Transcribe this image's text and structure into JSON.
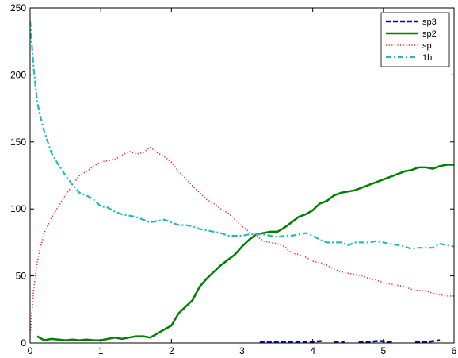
{
  "chart_data": {
    "type": "line",
    "title": "",
    "xlabel": "",
    "ylabel": "",
    "xlim": [
      0,
      6
    ],
    "ylim": [
      0,
      250
    ],
    "xticks": [
      "0",
      "1",
      "2",
      "3",
      "4",
      "5",
      "6"
    ],
    "yticks": [
      "0",
      "50",
      "100",
      "150",
      "200",
      "250"
    ],
    "grid": false,
    "legend_position": "top-right",
    "series": [
      {
        "name": "sp3",
        "color": "#0000cc",
        "dash": "dashed",
        "segments": [
          [
            [
              3.25,
              1
            ],
            [
              3.5,
              1
            ],
            [
              3.75,
              1
            ],
            [
              4.0,
              1
            ],
            [
              4.15,
              1.5
            ]
          ],
          [
            [
              4.3,
              1
            ],
            [
              4.45,
              1
            ]
          ],
          [
            [
              4.65,
              1
            ],
            [
              4.8,
              1
            ],
            [
              4.95,
              1.5
            ],
            [
              5.05,
              1
            ],
            [
              5.15,
              1
            ]
          ],
          [
            [
              5.45,
              1
            ],
            [
              5.65,
              1
            ],
            [
              5.8,
              2
            ]
          ]
        ]
      },
      {
        "name": "sp2",
        "color": "#008000",
        "dash": "solid",
        "segments": [
          [
            [
              0.1,
              5
            ],
            [
              0.2,
              2
            ],
            [
              0.3,
              3
            ],
            [
              0.4,
              2.5
            ],
            [
              0.5,
              2
            ],
            [
              0.6,
              2.5
            ],
            [
              0.7,
              2
            ],
            [
              0.8,
              2.5
            ],
            [
              0.9,
              2
            ],
            [
              1.0,
              2
            ],
            [
              1.1,
              3
            ],
            [
              1.2,
              4
            ],
            [
              1.3,
              3
            ],
            [
              1.4,
              4
            ],
            [
              1.5,
              5
            ],
            [
              1.6,
              5
            ],
            [
              1.7,
              4
            ],
            [
              1.8,
              7
            ],
            [
              1.9,
              10
            ],
            [
              2.0,
              13
            ],
            [
              2.1,
              22
            ],
            [
              2.2,
              27
            ],
            [
              2.3,
              32
            ],
            [
              2.4,
              42
            ],
            [
              2.5,
              48
            ],
            [
              2.6,
              53
            ],
            [
              2.7,
              58
            ],
            [
              2.8,
              62
            ],
            [
              2.9,
              66
            ],
            [
              3.0,
              72
            ],
            [
              3.1,
              77
            ],
            [
              3.2,
              81
            ],
            [
              3.3,
              82
            ],
            [
              3.4,
              83
            ],
            [
              3.5,
              83
            ],
            [
              3.6,
              86
            ],
            [
              3.7,
              90
            ],
            [
              3.8,
              94
            ],
            [
              3.9,
              96
            ],
            [
              4.0,
              99
            ],
            [
              4.1,
              104
            ],
            [
              4.2,
              106
            ],
            [
              4.3,
              110
            ],
            [
              4.4,
              112
            ],
            [
              4.5,
              113
            ],
            [
              4.6,
              114
            ],
            [
              4.7,
              116
            ],
            [
              4.8,
              118
            ],
            [
              4.9,
              120
            ],
            [
              5.0,
              122
            ],
            [
              5.1,
              124
            ],
            [
              5.2,
              126
            ],
            [
              5.3,
              128
            ],
            [
              5.4,
              129
            ],
            [
              5.5,
              131
            ],
            [
              5.6,
              131
            ],
            [
              5.7,
              130
            ],
            [
              5.8,
              132
            ],
            [
              5.9,
              133
            ],
            [
              6.0,
              133
            ]
          ]
        ]
      },
      {
        "name": "sp",
        "color": "#ee2222",
        "dash": "dotted",
        "segments": [
          [
            [
              0.0,
              5
            ],
            [
              0.05,
              40
            ],
            [
              0.1,
              60
            ],
            [
              0.15,
              72
            ],
            [
              0.2,
              82
            ],
            [
              0.3,
              93
            ],
            [
              0.4,
              102
            ],
            [
              0.5,
              110
            ],
            [
              0.6,
              118
            ],
            [
              0.7,
              125
            ],
            [
              0.8,
              128
            ],
            [
              0.9,
              132
            ],
            [
              1.0,
              135
            ],
            [
              1.1,
              136
            ],
            [
              1.2,
              137
            ],
            [
              1.3,
              140
            ],
            [
              1.4,
              143
            ],
            [
              1.5,
              141
            ],
            [
              1.6,
              142
            ],
            [
              1.7,
              146
            ],
            [
              1.8,
              142
            ],
            [
              1.9,
              139
            ],
            [
              2.0,
              135
            ],
            [
              2.1,
              128
            ],
            [
              2.2,
              123
            ],
            [
              2.3,
              117
            ],
            [
              2.4,
              112
            ],
            [
              2.5,
              107
            ],
            [
              2.6,
              104
            ],
            [
              2.7,
              100
            ],
            [
              2.8,
              97
            ],
            [
              2.9,
              92
            ],
            [
              3.0,
              87
            ],
            [
              3.1,
              83
            ],
            [
              3.2,
              80
            ],
            [
              3.3,
              76
            ],
            [
              3.4,
              75
            ],
            [
              3.5,
              74
            ],
            [
              3.6,
              72
            ],
            [
              3.7,
              67
            ],
            [
              3.8,
              66
            ],
            [
              3.9,
              64
            ],
            [
              4.0,
              61
            ],
            [
              4.1,
              60
            ],
            [
              4.2,
              58
            ],
            [
              4.3,
              55
            ],
            [
              4.4,
              53
            ],
            [
              4.5,
              52
            ],
            [
              4.6,
              51
            ],
            [
              4.7,
              50
            ],
            [
              4.8,
              48
            ],
            [
              4.9,
              47
            ],
            [
              5.0,
              45
            ],
            [
              5.1,
              44
            ],
            [
              5.2,
              43
            ],
            [
              5.3,
              42
            ],
            [
              5.4,
              40
            ],
            [
              5.5,
              39
            ],
            [
              5.6,
              39
            ],
            [
              5.7,
              37
            ],
            [
              5.8,
              36
            ],
            [
              5.9,
              35
            ],
            [
              6.0,
              35
            ]
          ]
        ]
      },
      {
        "name": "1b",
        "color": "#22bbbb",
        "dash": "dashdot",
        "segments": [
          [
            [
              0.0,
              240
            ],
            [
              0.05,
              205
            ],
            [
              0.1,
              180
            ],
            [
              0.15,
              168
            ],
            [
              0.2,
              158
            ],
            [
              0.3,
              142
            ],
            [
              0.4,
              133
            ],
            [
              0.5,
              125
            ],
            [
              0.6,
              118
            ],
            [
              0.7,
              112
            ],
            [
              0.8,
              110
            ],
            [
              0.9,
              107
            ],
            [
              1.0,
              102
            ],
            [
              1.1,
              101
            ],
            [
              1.2,
              98
            ],
            [
              1.3,
              96
            ],
            [
              1.4,
              95
            ],
            [
              1.5,
              94
            ],
            [
              1.6,
              92
            ],
            [
              1.7,
              90
            ],
            [
              1.8,
              91
            ],
            [
              1.9,
              92
            ],
            [
              2.0,
              90
            ],
            [
              2.1,
              88
            ],
            [
              2.2,
              88
            ],
            [
              2.3,
              87
            ],
            [
              2.4,
              85
            ],
            [
              2.5,
              84
            ],
            [
              2.6,
              83
            ],
            [
              2.7,
              82
            ],
            [
              2.8,
              80
            ],
            [
              2.9,
              80
            ],
            [
              3.0,
              80
            ],
            [
              3.1,
              81
            ],
            [
              3.2,
              81
            ],
            [
              3.3,
              81
            ],
            [
              3.4,
              80
            ],
            [
              3.5,
              79
            ],
            [
              3.6,
              80
            ],
            [
              3.7,
              80
            ],
            [
              3.8,
              81
            ],
            [
              3.9,
              82
            ],
            [
              4.0,
              80
            ],
            [
              4.1,
              77
            ],
            [
              4.2,
              75
            ],
            [
              4.3,
              75
            ],
            [
              4.4,
              75
            ],
            [
              4.5,
              73
            ],
            [
              4.6,
              75
            ],
            [
              4.7,
              75
            ],
            [
              4.8,
              75
            ],
            [
              4.9,
              76
            ],
            [
              5.0,
              75
            ],
            [
              5.1,
              74
            ],
            [
              5.2,
              73
            ],
            [
              5.3,
              72
            ],
            [
              5.4,
              70
            ],
            [
              5.5,
              71
            ],
            [
              5.6,
              71
            ],
            [
              5.7,
              71
            ],
            [
              5.8,
              74
            ],
            [
              5.9,
              73
            ],
            [
              6.0,
              72
            ]
          ]
        ]
      }
    ]
  }
}
